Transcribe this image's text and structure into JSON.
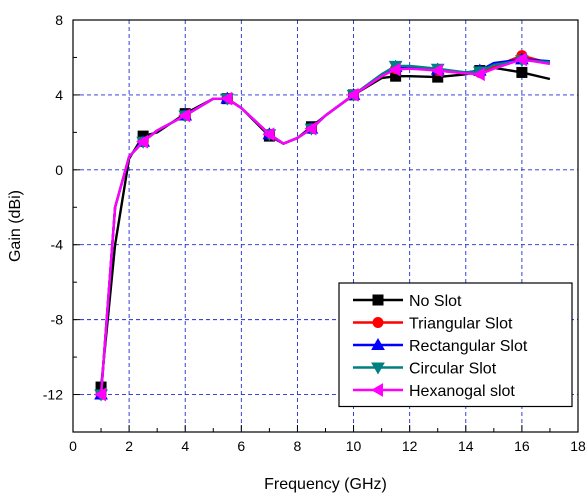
{
  "chart_data": {
    "type": "line",
    "title": "",
    "xlabel": "Frequency (GHz)",
    "ylabel": "Gain (dBi)",
    "xlim": [
      0,
      18
    ],
    "ylim": [
      -14,
      8
    ],
    "x_major_ticks": [
      0,
      2,
      4,
      6,
      8,
      10,
      12,
      14,
      16,
      18
    ],
    "y_major_ticks": [
      -12,
      -8,
      -4,
      0,
      4,
      8
    ],
    "x_tick_labels": [
      "0",
      "2",
      "4",
      "6",
      "8",
      "10",
      "12",
      "14",
      "16",
      "18"
    ],
    "y_tick_labels": [
      "-12",
      "-8",
      "-4",
      "0",
      "4",
      "8"
    ],
    "grid": true,
    "grid_color": "#1f2bd6",
    "legend_position": "bottom-right",
    "x": [
      1,
      1.5,
      2,
      2.5,
      3,
      4,
      5,
      5.5,
      6,
      7,
      7.5,
      8,
      8.5,
      9,
      10,
      11,
      11.5,
      12,
      13,
      14,
      14.5,
      15,
      16,
      17
    ],
    "series": [
      {
        "name": "No Slot",
        "color": "#000000",
        "marker": "square",
        "marker_x": [
          1,
          2.5,
          4,
          5.5,
          7,
          8.5,
          10,
          11.5,
          13,
          14.5,
          16
        ],
        "values": [
          -11.6,
          -4.0,
          0.6,
          1.8,
          2.0,
          3.0,
          3.8,
          3.8,
          3.3,
          1.8,
          1.4,
          1.7,
          2.3,
          2.9,
          4.0,
          4.9,
          5.0,
          5.0,
          4.95,
          5.1,
          5.3,
          5.45,
          5.2,
          4.85
        ]
      },
      {
        "name": "Triangular Slot",
        "color": "#ff0000",
        "marker": "circle",
        "marker_x": [
          1,
          2.5,
          4,
          5.5,
          7,
          8.5,
          10,
          11.5,
          13,
          14.5,
          16
        ],
        "values": [
          -12.0,
          -2.0,
          0.7,
          1.5,
          2.1,
          2.9,
          3.8,
          3.8,
          3.3,
          1.9,
          1.4,
          1.7,
          2.2,
          2.9,
          4.0,
          5.0,
          5.4,
          5.45,
          5.3,
          5.15,
          5.2,
          5.5,
          6.1,
          5.7
        ]
      },
      {
        "name": "Rectangular Slot",
        "color": "#0000ff",
        "marker": "triangle-up",
        "marker_x": [
          1,
          2.5,
          4,
          5.5,
          7,
          8.5,
          10,
          11.5,
          13,
          14.5,
          16
        ],
        "values": [
          -12.0,
          -2.0,
          0.7,
          1.5,
          2.1,
          2.9,
          3.8,
          3.8,
          3.3,
          1.9,
          1.4,
          1.7,
          2.2,
          2.9,
          4.0,
          5.1,
          5.5,
          5.5,
          5.35,
          5.2,
          5.3,
          5.7,
          5.9,
          5.8
        ]
      },
      {
        "name": "Circular Slot",
        "color": "#008080",
        "marker": "triangle-down",
        "marker_x": [
          1,
          2.5,
          4,
          5.5,
          7,
          8.5,
          10,
          11.5,
          13,
          14.5,
          16
        ],
        "values": [
          -12.0,
          -2.0,
          0.7,
          1.5,
          2.1,
          2.9,
          3.8,
          3.8,
          3.3,
          1.9,
          1.4,
          1.7,
          2.2,
          2.9,
          4.0,
          5.1,
          5.55,
          5.55,
          5.4,
          5.2,
          5.25,
          5.6,
          5.85,
          5.75
        ]
      },
      {
        "name": "Hexanogal slot",
        "color": "#ff00ff",
        "marker": "triangle-left",
        "marker_x": [
          1,
          2.5,
          4,
          5.5,
          7,
          8.5,
          10,
          11.5,
          13,
          14.5,
          16
        ],
        "values": [
          -12.0,
          -2.0,
          0.7,
          1.5,
          2.1,
          2.9,
          3.8,
          3.8,
          3.3,
          1.9,
          1.4,
          1.7,
          2.2,
          2.9,
          4.0,
          5.0,
          5.35,
          5.4,
          5.3,
          5.15,
          5.1,
          5.4,
          5.9,
          5.65
        ]
      }
    ]
  }
}
